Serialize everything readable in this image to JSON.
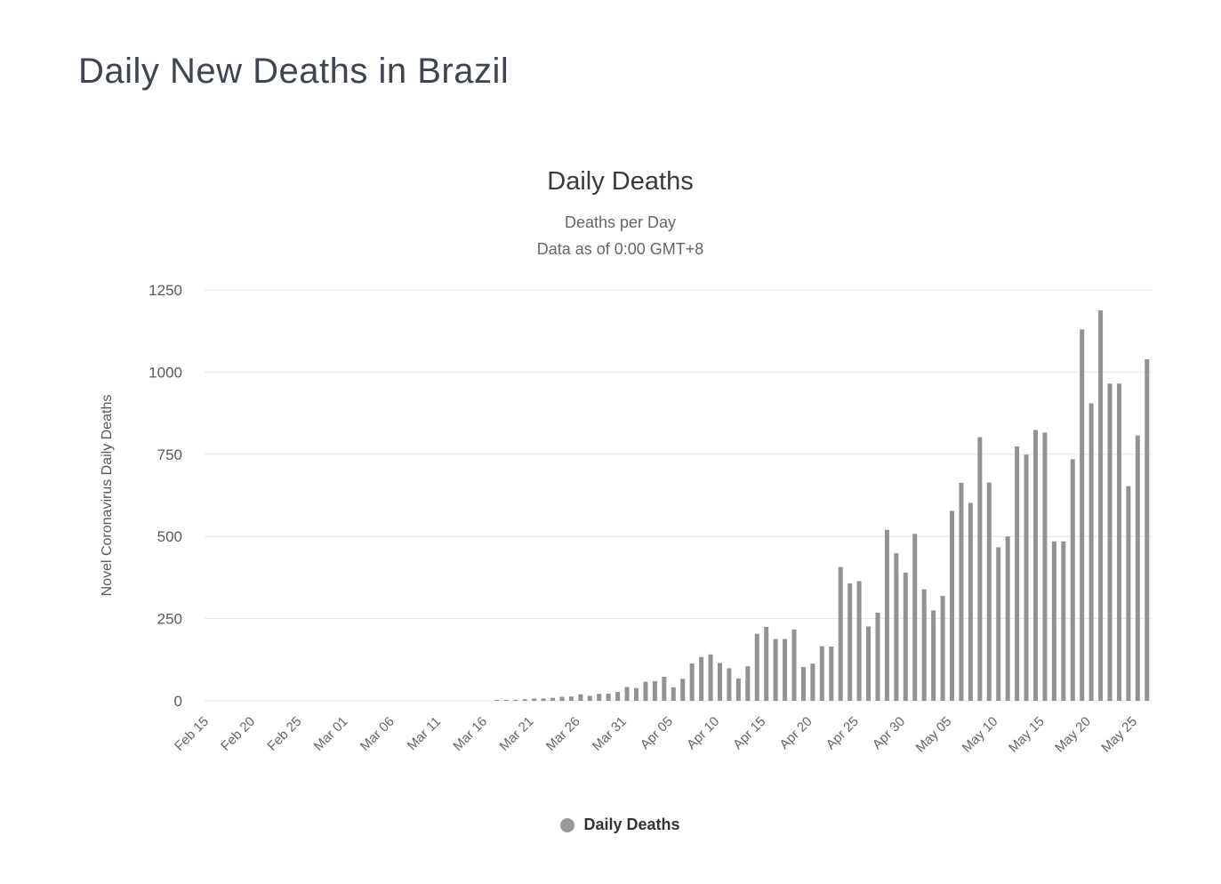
{
  "page": {
    "title": "Daily New Deaths in Brazil"
  },
  "chart": {
    "title": "Daily Deaths",
    "subtitle1": "Deaths per Day",
    "subtitle2": "Data as of 0:00 GMT+8",
    "legend_label": "Daily Deaths"
  },
  "colors": {
    "bar": "#929292",
    "grid": "#e6e6e6",
    "axis_text": "#595959",
    "tick_text": "#666666",
    "title_text": "#3e4450",
    "legend_dot": "#999999"
  },
  "chart_data": {
    "type": "bar",
    "title": "Daily Deaths",
    "subtitle": [
      "Deaths per Day",
      "Data as of 0:00 GMT+8"
    ],
    "xlabel": "",
    "ylabel": "Novel Coronavirus Daily Deaths",
    "ylim": [
      0,
      1250
    ],
    "yticks": [
      0,
      250,
      500,
      750,
      1000,
      1250
    ],
    "grid": true,
    "legend": {
      "position": "bottom",
      "entries": [
        "Daily Deaths"
      ]
    },
    "x_tick_every": 5,
    "categories": [
      "Feb 15",
      "Feb 16",
      "Feb 17",
      "Feb 18",
      "Feb 19",
      "Feb 20",
      "Feb 21",
      "Feb 22",
      "Feb 23",
      "Feb 24",
      "Feb 25",
      "Feb 26",
      "Feb 27",
      "Feb 28",
      "Feb 29",
      "Mar 01",
      "Mar 02",
      "Mar 03",
      "Mar 04",
      "Mar 05",
      "Mar 06",
      "Mar 07",
      "Mar 08",
      "Mar 09",
      "Mar 10",
      "Mar 11",
      "Mar 12",
      "Mar 13",
      "Mar 14",
      "Mar 15",
      "Mar 16",
      "Mar 17",
      "Mar 18",
      "Mar 19",
      "Mar 20",
      "Mar 21",
      "Mar 22",
      "Mar 23",
      "Mar 24",
      "Mar 25",
      "Mar 26",
      "Mar 27",
      "Mar 28",
      "Mar 29",
      "Mar 30",
      "Mar 31",
      "Apr 01",
      "Apr 02",
      "Apr 03",
      "Apr 04",
      "Apr 05",
      "Apr 06",
      "Apr 07",
      "Apr 08",
      "Apr 09",
      "Apr 10",
      "Apr 11",
      "Apr 12",
      "Apr 13",
      "Apr 14",
      "Apr 15",
      "Apr 16",
      "Apr 17",
      "Apr 18",
      "Apr 19",
      "Apr 20",
      "Apr 21",
      "Apr 22",
      "Apr 23",
      "Apr 24",
      "Apr 25",
      "Apr 26",
      "Apr 27",
      "Apr 28",
      "Apr 29",
      "Apr 30",
      "May 01",
      "May 02",
      "May 03",
      "May 04",
      "May 05",
      "May 06",
      "May 07",
      "May 08",
      "May 09",
      "May 10",
      "May 11",
      "May 12",
      "May 13",
      "May 14",
      "May 15",
      "May 16",
      "May 17",
      "May 18",
      "May 19",
      "May 20",
      "May 21",
      "May 22",
      "May 23",
      "May 24",
      "May 25",
      "May 26"
    ],
    "values": [
      0,
      0,
      0,
      0,
      0,
      0,
      0,
      0,
      0,
      0,
      0,
      0,
      0,
      0,
      0,
      0,
      0,
      0,
      0,
      0,
      0,
      0,
      0,
      0,
      0,
      0,
      0,
      0,
      0,
      0,
      0,
      1,
      2,
      3,
      5,
      7,
      7,
      9,
      12,
      13,
      20,
      15,
      21,
      22,
      27,
      42,
      39,
      58,
      60,
      73,
      41,
      67,
      114,
      133,
      141,
      115,
      99,
      68,
      105,
      204,
      225,
      188,
      188,
      217,
      103,
      113,
      166,
      165,
      407,
      357,
      364,
      226,
      268,
      520,
      449,
      390,
      508,
      339,
      275,
      319,
      578,
      663,
      602,
      802,
      664,
      467,
      500,
      774,
      749,
      824,
      816,
      485,
      485,
      735,
      1130,
      905,
      1188,
      965,
      965,
      653,
      807,
      1039
    ]
  }
}
